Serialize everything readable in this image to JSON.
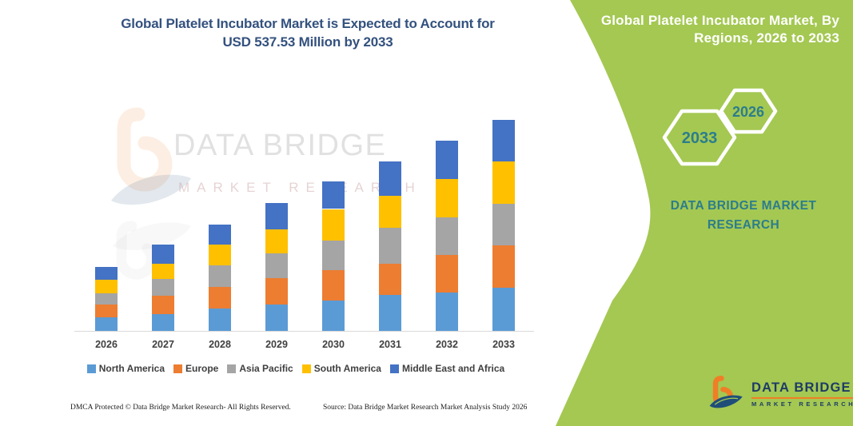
{
  "header": {
    "title_line1": "Global Platelet Incubator Market is Expected to Account for",
    "title_line2": "USD 537.53 Million by 2033"
  },
  "side_panel": {
    "title_line1": "Global Platelet Incubator Market, By",
    "title_line2": "Regions, 2026 to 2033",
    "hexagon_large_label": "2033",
    "hexagon_small_label": "2026",
    "brand_line1": "DATA BRIDGE MARKET",
    "brand_line2": "RESEARCH",
    "colors": {
      "panel_green": "#A4C852",
      "teal_text": "#2C7D8C",
      "hex_border": "#FFFFFF"
    }
  },
  "logo": {
    "name": "DATA BRIDGE",
    "sub": "MARKET RESEARCH"
  },
  "watermark": {
    "line1": "DATA BRIDGE",
    "line2": "MARKET RESEARCH"
  },
  "footer": {
    "left_text": "DMCA Protected © Data Bridge Market Research-  All Rights Reserved.",
    "source_text": "Source: Data Bridge Market Research  Market Analysis Study 2026"
  },
  "chart_data": {
    "type": "bar",
    "stacked": true,
    "title": "Global Platelet Incubator Market is Expected to Account for USD 537.53 Million by 2033",
    "unit": "USD Million (estimated from bar heights; 2033 total anchored to 537.53)",
    "categories": [
      "2026",
      "2027",
      "2028",
      "2029",
      "2030",
      "2031",
      "2032",
      "2033"
    ],
    "series": [
      {
        "name": "North America",
        "color": "#5B9BD5",
        "values": [
          34.5,
          42.0,
          57.5,
          68.0,
          77.5,
          91.5,
          97.0,
          110.5
        ]
      },
      {
        "name": "Europe",
        "color": "#ED7D31",
        "values": [
          33.0,
          47.5,
          55.0,
          67.0,
          78.0,
          80.0,
          96.5,
          106.5
        ]
      },
      {
        "name": "Asia Pacific",
        "color": "#A5A5A5",
        "values": [
          28.5,
          42.0,
          54.5,
          61.5,
          75.5,
          91.5,
          96.0,
          106.0
        ]
      },
      {
        "name": "South America",
        "color": "#FFC000",
        "values": [
          34.0,
          40.5,
          52.5,
          62.5,
          79.5,
          81.0,
          97.0,
          108.0
        ]
      },
      {
        "name": "Middle East and Africa",
        "color": "#4472C4",
        "values": [
          33.0,
          47.5,
          51.5,
          66.5,
          70.0,
          87.0,
          98.5,
          106.5
        ]
      }
    ],
    "totals": [
      163.0,
      219.5,
      271.0,
      325.5,
      380.5,
      431.0,
      485.0,
      537.53
    ],
    "xlabel": "",
    "ylabel": "",
    "ylim": [
      0,
      560
    ],
    "grid": false,
    "y_axis_visible": false,
    "legend_position": "bottom",
    "axis_line_color": "#D9D9D9"
  }
}
